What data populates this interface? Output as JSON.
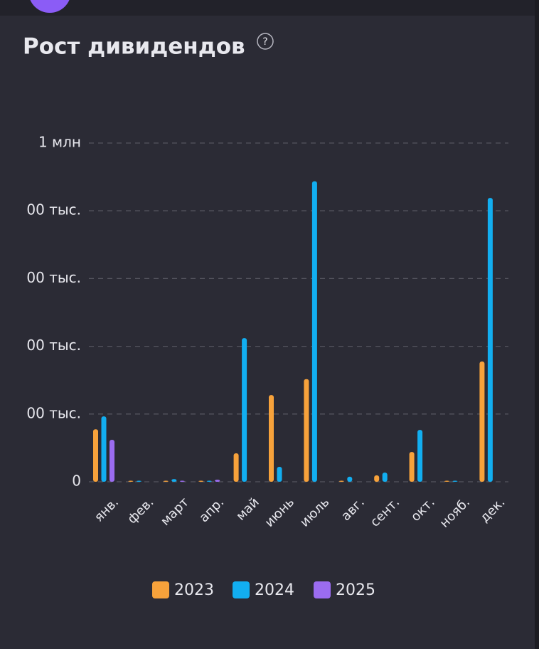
{
  "chart_data": {
    "type": "bar",
    "title": "Рост дивидендов",
    "help_icon": "?",
    "categories": [
      "янв.",
      "фев.",
      "март",
      "апр.",
      "май",
      "июнь",
      "июль",
      "авг.",
      "сент.",
      "окт.",
      "нояб.",
      "дек."
    ],
    "series": [
      {
        "name": "2023",
        "color": "#f7a23b",
        "values": [
          155000,
          0,
          0,
          2000,
          84000,
          256000,
          303000,
          2000,
          19000,
          88000,
          0,
          355000
        ]
      },
      {
        "name": "2024",
        "color": "#12aef0",
        "values": [
          193000,
          0,
          8000,
          2000,
          424000,
          44000,
          887000,
          15000,
          27000,
          153000,
          0,
          838000
        ]
      },
      {
        "name": "2025",
        "color": "#9b6cf0",
        "values": [
          124000,
          null,
          2000,
          6000,
          null,
          null,
          null,
          null,
          null,
          null,
          null,
          null
        ]
      }
    ],
    "ylim": [
      0,
      1000000
    ],
    "yticks": [
      0,
      {
        "value": 200000,
        "label": "00 тыс."
      },
      {
        "value": 400000,
        "label": "00 тыс."
      },
      {
        "value": 600000,
        "label": "00 тыс."
      },
      {
        "value": 800000,
        "label": "00 тыс."
      },
      {
        "value": 1000000,
        "label": "1 млн"
      }
    ],
    "grid": true,
    "legend": "bottom"
  }
}
